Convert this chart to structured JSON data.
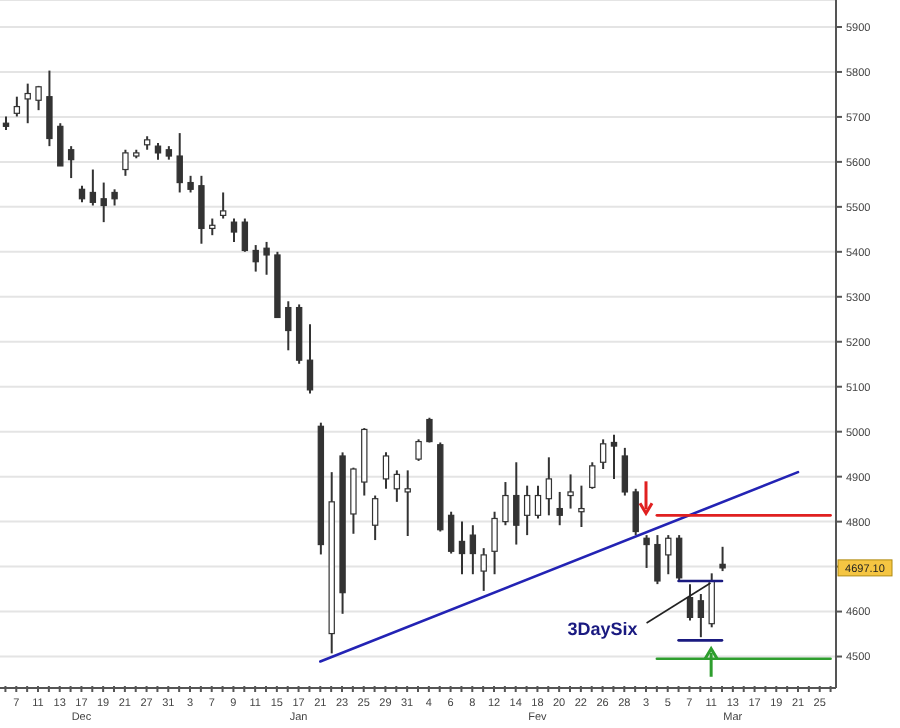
{
  "chart_data": {
    "type": "candlestick",
    "categories": [
      null,
      "7",
      null,
      "11",
      null,
      "13",
      null,
      "17",
      null,
      "19",
      null,
      "21",
      null,
      "27",
      null,
      "31",
      null,
      "3",
      null,
      "7",
      null,
      "9",
      null,
      "11",
      null,
      "15",
      null,
      "17",
      null,
      "21",
      null,
      "23",
      null,
      "25",
      null,
      "29",
      null,
      "31",
      null,
      "4",
      null,
      "6",
      null,
      "8",
      null,
      "12",
      null,
      "14",
      null,
      "18",
      null,
      "20",
      null,
      "22",
      null,
      "26",
      null,
      "28",
      null,
      "3",
      null,
      "5",
      null,
      "7",
      null,
      "11",
      null,
      "13",
      null,
      "17",
      null,
      "19",
      null,
      "21",
      null,
      "25",
      null
    ],
    "ohlc": [
      [
        5686,
        5701,
        5671,
        5679
      ],
      [
        5708,
        5745,
        5701,
        5723
      ],
      [
        5740,
        5774,
        5686,
        5752
      ],
      [
        5737,
        5769,
        5715,
        5767
      ],
      [
        5745,
        5803,
        5635,
        5652
      ],
      [
        5679,
        5686,
        5591,
        5591
      ],
      [
        5627,
        5635,
        5564,
        5605
      ],
      [
        5539,
        5547,
        5510,
        5518
      ],
      [
        5532,
        5583,
        5503,
        5510
      ],
      [
        5518,
        5554,
        5466,
        5503
      ],
      [
        5532,
        5539,
        5503,
        5518
      ],
      [
        5583,
        5627,
        5569,
        5620
      ],
      [
        5613,
        5627,
        5608,
        5620
      ],
      [
        5638,
        5657,
        5627,
        5649
      ],
      [
        5635,
        5642,
        5605,
        5620
      ],
      [
        5627,
        5635,
        5605,
        5613
      ],
      [
        5613,
        5664,
        5532,
        5554
      ],
      [
        5554,
        5569,
        5532,
        5539
      ],
      [
        5547,
        5569,
        5418,
        5452
      ],
      [
        5452,
        5474,
        5437,
        5459
      ],
      [
        5481,
        5532,
        5474,
        5491
      ],
      [
        5466,
        5474,
        5422,
        5444
      ],
      [
        5466,
        5474,
        5400,
        5403
      ],
      [
        5403,
        5415,
        5356,
        5378
      ],
      [
        5408,
        5422,
        5349,
        5393
      ],
      [
        5393,
        5400,
        5254,
        5254
      ],
      [
        5276,
        5290,
        5181,
        5225
      ],
      [
        5276,
        5283,
        5151,
        5159
      ],
      [
        5159,
        5239,
        5085,
        5093
      ],
      [
        5012,
        5020,
        4727,
        4749
      ],
      [
        4551,
        4910,
        4507,
        4844
      ],
      [
        4946,
        4954,
        4595,
        4642
      ],
      [
        4817,
        4920,
        4773,
        4917
      ],
      [
        4888,
        5008,
        4858,
        5005
      ],
      [
        4792,
        4858,
        4759,
        4851
      ],
      [
        4895,
        4954,
        4873,
        4946
      ],
      [
        4873,
        4914,
        4844,
        4905
      ],
      [
        4866,
        4914,
        4768,
        4873
      ],
      [
        4939,
        4983,
        4935,
        4978
      ],
      [
        5027,
        5031,
        4976,
        4978
      ],
      [
        4971,
        4976,
        4778,
        4782
      ],
      [
        4814,
        4822,
        4729,
        4734
      ],
      [
        4756,
        4800,
        4683,
        4729
      ],
      [
        4770,
        4792,
        4683,
        4729
      ],
      [
        4690,
        4741,
        4646,
        4726
      ],
      [
        4734,
        4822,
        4683,
        4807
      ],
      [
        4800,
        4888,
        4792,
        4858
      ],
      [
        4858,
        4932,
        4749,
        4792
      ],
      [
        4814,
        4880,
        4770,
        4858
      ],
      [
        4814,
        4880,
        4807,
        4858
      ],
      [
        4851,
        4943,
        4814,
        4895
      ],
      [
        4829,
        4866,
        4792,
        4814
      ],
      [
        4858,
        4905,
        4829,
        4866
      ],
      [
        4822,
        4880,
        4788,
        4829
      ],
      [
        4876,
        4932,
        4873,
        4924
      ],
      [
        4932,
        4983,
        4917,
        4973
      ],
      [
        4976,
        4993,
        4895,
        4968
      ],
      [
        4946,
        4964,
        4858,
        4866
      ],
      [
        4866,
        4873,
        4770,
        4778
      ],
      [
        4763,
        4770,
        4697,
        4749
      ],
      [
        4749,
        4770,
        4661,
        4668
      ],
      [
        4726,
        4770,
        4683,
        4763
      ],
      [
        4763,
        4770,
        4668,
        4675
      ],
      [
        4631,
        4661,
        4580,
        4587
      ],
      [
        4624,
        4639,
        4543,
        4587
      ],
      [
        4573,
        4685,
        4565,
        4668
      ],
      [
        4705,
        4744,
        4690,
        4697.1
      ],
      null,
      null,
      null,
      null,
      null,
      null,
      null,
      null,
      null,
      null
    ],
    "series": [
      {
        "type": "line",
        "color": "#2323b4",
        "values": [
          null,
          null,
          null,
          null,
          null,
          null,
          null,
          null,
          null,
          null,
          null,
          null,
          null,
          null,
          null,
          null,
          null,
          null,
          null,
          null,
          null,
          null,
          null,
          null,
          null,
          null,
          null,
          null,
          null,
          4489,
          null,
          null,
          null,
          null,
          null,
          null,
          null,
          null,
          null,
          null,
          null,
          null,
          null,
          null,
          null,
          null,
          null,
          null,
          null,
          null,
          null,
          null,
          null,
          null,
          null,
          null,
          null,
          null,
          null,
          null,
          null,
          null,
          null,
          null,
          null,
          null,
          null,
          null,
          null,
          null,
          null,
          null,
          null,
          4910,
          null,
          null,
          null
        ]
      },
      {
        "type": "line",
        "color": "#e02020",
        "values": [
          null,
          null,
          null,
          null,
          null,
          null,
          null,
          null,
          null,
          null,
          null,
          null,
          null,
          null,
          null,
          null,
          null,
          null,
          null,
          null,
          null,
          null,
          null,
          null,
          null,
          null,
          null,
          null,
          null,
          null,
          null,
          null,
          null,
          null,
          null,
          null,
          null,
          null,
          null,
          null,
          null,
          null,
          null,
          null,
          null,
          null,
          null,
          null,
          null,
          null,
          null,
          null,
          null,
          null,
          null,
          null,
          null,
          null,
          null,
          null,
          4814,
          4814,
          4814,
          4814,
          4814,
          4814,
          4814,
          4814,
          4814,
          4814,
          4814,
          4814,
          4814,
          4814,
          4814,
          4814,
          4814
        ]
      },
      {
        "type": "line",
        "color": "#2e9e2e",
        "values": [
          null,
          null,
          null,
          null,
          null,
          null,
          null,
          null,
          null,
          null,
          null,
          null,
          null,
          null,
          null,
          null,
          null,
          null,
          null,
          null,
          null,
          null,
          null,
          null,
          null,
          null,
          null,
          null,
          null,
          null,
          null,
          null,
          null,
          null,
          null,
          null,
          null,
          null,
          null,
          null,
          null,
          null,
          null,
          null,
          null,
          null,
          null,
          null,
          null,
          null,
          null,
          null,
          null,
          null,
          null,
          null,
          null,
          null,
          null,
          null,
          4495,
          4495,
          4495,
          4495,
          4495,
          4495,
          4495,
          4495,
          4495,
          4495,
          4495,
          4495,
          4495,
          4495,
          4495,
          4495,
          4495
        ]
      },
      {
        "type": "line",
        "color": "#1a1a80",
        "values": [
          null,
          null,
          null,
          null,
          null,
          null,
          null,
          null,
          null,
          null,
          null,
          null,
          null,
          null,
          null,
          null,
          null,
          null,
          null,
          null,
          null,
          null,
          null,
          null,
          null,
          null,
          null,
          null,
          null,
          null,
          null,
          null,
          null,
          null,
          null,
          null,
          null,
          null,
          null,
          null,
          null,
          null,
          null,
          null,
          null,
          null,
          null,
          null,
          null,
          null,
          null,
          null,
          null,
          null,
          null,
          null,
          null,
          null,
          null,
          null,
          null,
          null,
          4668,
          4668,
          4668,
          4668,
          4668,
          null,
          null,
          null,
          null,
          null,
          null,
          null,
          null,
          null,
          null
        ]
      },
      {
        "type": "line",
        "color": "#1a1a80",
        "values": [
          null,
          null,
          null,
          null,
          null,
          null,
          null,
          null,
          null,
          null,
          null,
          null,
          null,
          null,
          null,
          null,
          null,
          null,
          null,
          null,
          null,
          null,
          null,
          null,
          null,
          null,
          null,
          null,
          null,
          null,
          null,
          null,
          null,
          null,
          null,
          null,
          null,
          null,
          null,
          null,
          null,
          null,
          null,
          null,
          null,
          null,
          null,
          null,
          null,
          null,
          null,
          null,
          null,
          null,
          null,
          null,
          null,
          null,
          null,
          null,
          null,
          null,
          4536,
          4536,
          4536,
          4536,
          4536,
          null,
          null,
          null,
          null,
          null,
          null,
          null,
          null,
          null,
          null
        ]
      }
    ],
    "annotations": [
      "Dec",
      "Jan",
      "Fev",
      "Mar",
      "3DaySix",
      "4697.10"
    ],
    "ylim": [
      4430,
      5960
    ],
    "yticks": [
      4500,
      4600,
      {
        "value": 4700,
        "label": null
      },
      4800,
      4900,
      5000,
      5100,
      5200,
      5300,
      5400,
      5500,
      5600,
      5700,
      5800,
      5900
    ],
    "grid": "y"
  }
}
